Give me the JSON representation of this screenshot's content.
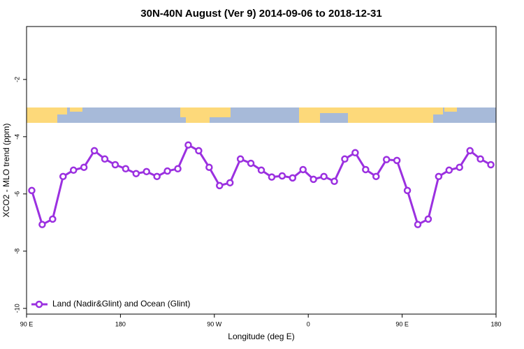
{
  "chart_data": {
    "type": "line",
    "title": "30N-40N August (Ver 9)   2014-09-06 to 2018-12-31",
    "x_label": "Longitude (deg E)",
    "y_label": "XCO2 - MLO trend (ppm)",
    "x": [
      95,
      105,
      115,
      125,
      135,
      145,
      155,
      165,
      175,
      185,
      195,
      205,
      215,
      225,
      235,
      245,
      255,
      265,
      275,
      285,
      295,
      305,
      315,
      325,
      335,
      345,
      355,
      365,
      375,
      385,
      395,
      405,
      415,
      425,
      435,
      445,
      455,
      465,
      475,
      485,
      495,
      505,
      515,
      525,
      535
    ],
    "series": [
      {
        "name": "Land (Nadir&Glint) and Ocean (Glint)",
        "color": "#9b30e0",
        "values": [
          -5.88,
          -7.07,
          -6.88,
          -5.39,
          -5.17,
          -5.07,
          -4.49,
          -4.78,
          -4.98,
          -5.12,
          -5.29,
          -5.22,
          -5.39,
          -5.2,
          -5.12,
          -4.29,
          -4.49,
          -5.07,
          -5.71,
          -5.61,
          -4.78,
          -4.93,
          -5.17,
          -5.41,
          -5.37,
          -5.44,
          -5.15,
          -5.49,
          -5.39,
          -5.56,
          -4.78,
          -4.56,
          -5.15,
          -5.39,
          -4.8,
          -4.83,
          -5.88,
          -7.07,
          -6.88,
          -5.39,
          -5.17,
          -5.07,
          -4.49,
          -4.78,
          -4.98
        ]
      }
    ],
    "xlim": [
      90,
      540
    ],
    "xticks": [
      {
        "value": 90,
        "label": "90 E"
      },
      180,
      {
        "value": 270,
        "label": "90 W"
      },
      {
        "value": 360,
        "label": "0"
      },
      {
        "value": 450,
        "label": "90 E"
      },
      {
        "value": 540,
        "label": "180"
      }
    ],
    "ylim": [
      -10.2,
      -0.15
    ],
    "yticks": [
      -10,
      -8,
      -6,
      -4,
      -2
    ],
    "legend": "lower left"
  }
}
